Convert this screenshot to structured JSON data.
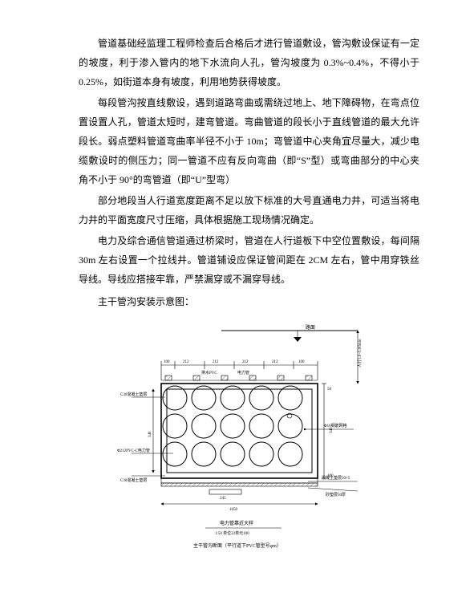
{
  "paragraphs": {
    "p1": "管道基础经监理工程师检查后合格后才进行管道敷设，管沟敷设保证有一定的坡度，利于渗入管内的地下水流向人孔，管沟坡度为 0.3%~0.4%，不得小于 0.25%，如街道本身有坡度，利用地势获得坡度。",
    "p2": "每段管沟按直线敷设，遇到道路弯曲或需绕过地上、地下障碍物，在弯点位置设置人孔，管道太短时，建弯管道。弯曲管道的段长小于直线管道的最大允许段长。弱点塑料管道弯曲率半径不小于 10m；弯管道中心夹角宜尽量大，减少电缆敷设时的侧压力；同一管道不应有反向弯曲（即“S”型）或弯曲部分的中心夹角不小于 90°的弯管道（即“U”型弯）",
    "p3": "部分地段当人行道宽度距离不足以放下标准的大号直通电力井，可适当将电力井的平面宽度尺寸压缩，具体根据施工现场情况确定。",
    "p4": "电力及综合通信管道通过桥梁时，管道在人行道板下中空位置敷设，每间隔 30m 左右设置一个拉线井。管道铺设应保证管间距在 2CM 左右，管中用穿铁丝导线。导线应搭接牢靠，严禁漏穿或不漏穿导线。",
    "caption": "主干管沟安装示意图："
  },
  "diagram": {
    "labels": {
      "ground": "路面",
      "depthRange": "人行1.0~5.00mm",
      "top_dims": [
        "100",
        "212",
        "212",
        "212",
        "212",
        "100"
      ],
      "pipe_pvc": "排水PVC",
      "power_pipe": "电力管",
      "left_dim": "340",
      "concrete_top": "C30混凝土垫层",
      "pipe_spec": "Φ212PVC-C电力管",
      "concrete_bot": "C30混凝土垫层",
      "mesh": "Φ16钢筋网格",
      "bottom_245": "245",
      "bottom_1650": "1650",
      "rebar_layer": "混凝土垫层50×5",
      "sand_layer": "砂垫层50厚",
      "title1": "电力管靠近大样",
      "scale": "1:50 单位22单元100",
      "title2": "主干管沟断面（平行道下PVC管型号φm）",
      "right_100": "100",
      "right_50": "50",
      "right_340": "340"
    },
    "grid": {
      "cols": 5,
      "rows": 3
    },
    "colors": {
      "line": "#000000",
      "bg": "#ffffff"
    }
  }
}
